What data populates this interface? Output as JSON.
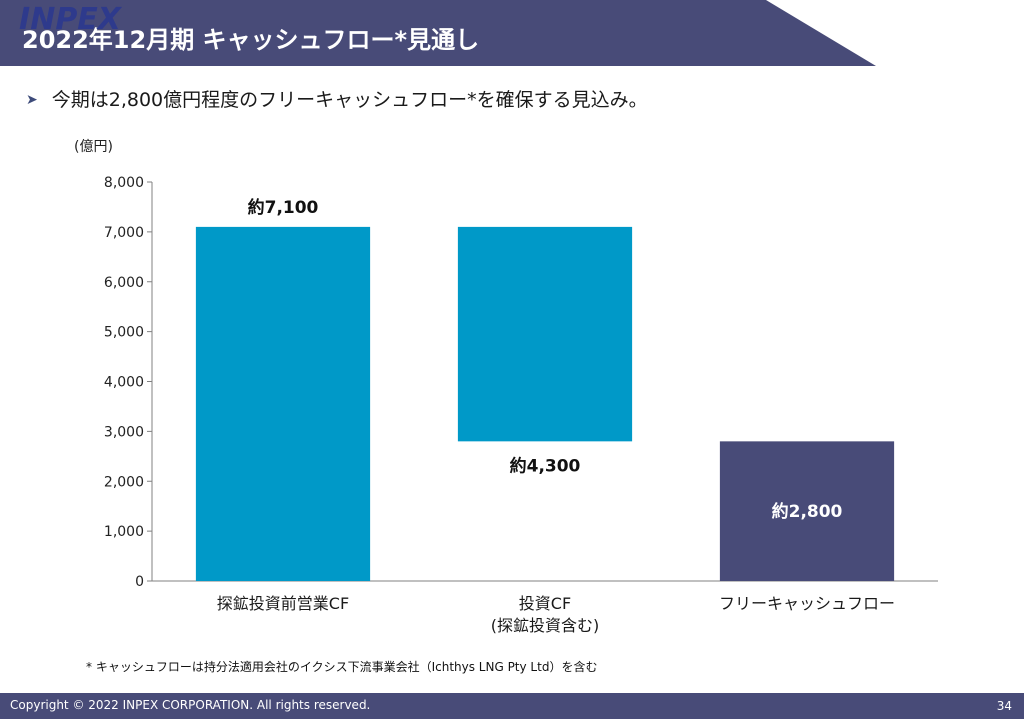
{
  "header": {
    "title": "2022年12月期 キャッシュフロー*見通し",
    "logo_text": "INPEX"
  },
  "bullet": "今期は2,800億円程度のフリーキャッシュフロー*を確保する見込み。",
  "chart_data": {
    "type": "bar",
    "subtype": "waterfall",
    "unit_label": "(億円)",
    "categories": [
      [
        "探鉱投資前営業CF"
      ],
      [
        "投資CF",
        "(探鉱投資含む)"
      ],
      [
        "フリーキャッシュフロー"
      ]
    ],
    "bars": [
      {
        "start": 0,
        "end": 7100,
        "label": "約7,100",
        "color": "#0099c8",
        "label_pos": "above"
      },
      {
        "start": 2800,
        "end": 7100,
        "label": "約4,300",
        "color": "#0099c8",
        "label_pos": "below"
      },
      {
        "start": 0,
        "end": 2800,
        "label": "約2,800",
        "color": "#484b78",
        "label_pos": "inside"
      }
    ],
    "yticks": [
      "0",
      "1,000",
      "2,000",
      "3,000",
      "4,000",
      "5,000",
      "6,000",
      "7,000",
      "8,000"
    ],
    "ylim": [
      0,
      8000
    ],
    "grid": false,
    "legend": "none"
  },
  "footnote": "* キャッシュフローは持分法適用会社のイクシス下流事業会社（Ichthys LNG Pty Ltd）を含む",
  "footer": {
    "copyright": "Copyright © 2022 INPEX CORPORATION. All rights reserved.",
    "page_number": "34"
  },
  "colors": {
    "header_bg": "#484b78",
    "accent_blue": "#0099c8",
    "navy": "#484b78",
    "logo_blue": "#2e3a8c"
  }
}
